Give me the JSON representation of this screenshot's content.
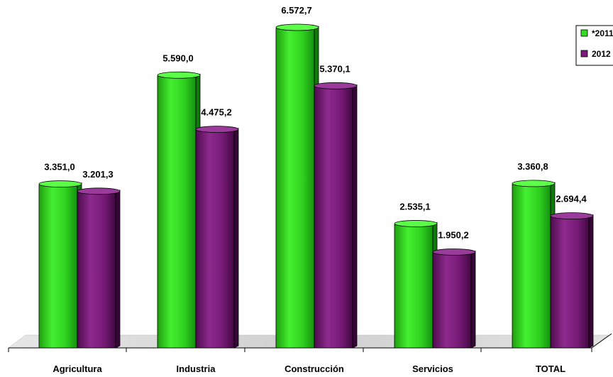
{
  "chart_data": {
    "type": "bar",
    "categories": [
      "Agricultura",
      "Industria",
      "Construcción",
      "Servicios",
      "TOTAL"
    ],
    "series": [
      {
        "name": "*2011",
        "color": "#33dd22",
        "values": [
          3351.0,
          5590.0,
          6572.7,
          2535.1,
          3360.8
        ],
        "labels": [
          "3.351,0",
          "5.590,0",
          "6.572,7",
          "2.535,1",
          "3.360,8"
        ]
      },
      {
        "name": "2012",
        "color": "#7a1a7a",
        "values": [
          3201.3,
          4475.2,
          5370.1,
          1950.2,
          2694.4
        ],
        "labels": [
          "3.201,3",
          "4.475,2",
          "5.370,1",
          "1.950,2",
          "2.694,4"
        ]
      }
    ],
    "legend": {
      "position": "top-right",
      "entries": [
        "*2011",
        "2012"
      ]
    },
    "grid": false,
    "ylim": [
      0,
      7000
    ]
  }
}
